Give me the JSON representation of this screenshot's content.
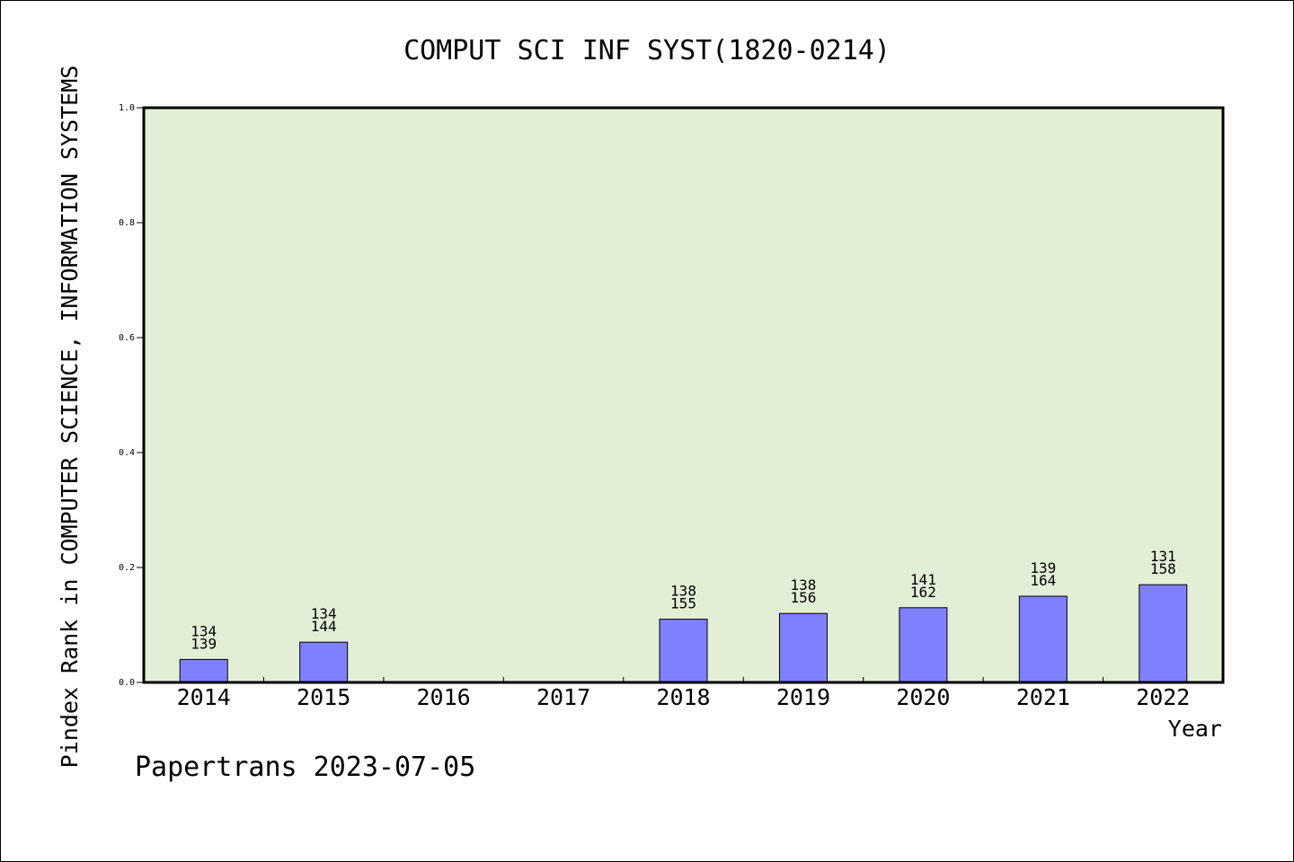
{
  "chart_data": {
    "type": "bar",
    "title": "COMPUT SCI INF SYST(1820-0214)",
    "xlabel": "Year",
    "ylabel": "Pindex Rank in COMPUTER SCIENCE, INFORMATION SYSTEMS",
    "ylim": [
      0,
      1.0
    ],
    "yticks": [
      "0.0",
      "0.2",
      "0.4",
      "0.6",
      "0.8",
      "1.0"
    ],
    "categories": [
      "2014",
      "2015",
      "2016",
      "2017",
      "2018",
      "2019",
      "2020",
      "2021",
      "2022"
    ],
    "values": [
      0.04,
      0.07,
      null,
      null,
      0.11,
      0.12,
      0.13,
      0.15,
      0.17
    ],
    "labels_top": [
      "134",
      "134",
      "",
      "",
      "138",
      "138",
      "141",
      "139",
      "131"
    ],
    "labels_bottom": [
      "139",
      "144",
      "",
      "",
      "155",
      "156",
      "162",
      "164",
      "158"
    ],
    "colors": {
      "plot_bg": "#e2efd6",
      "bar": "#8080ff"
    },
    "grid": false
  },
  "footer": "Papertrans 2023-07-05"
}
